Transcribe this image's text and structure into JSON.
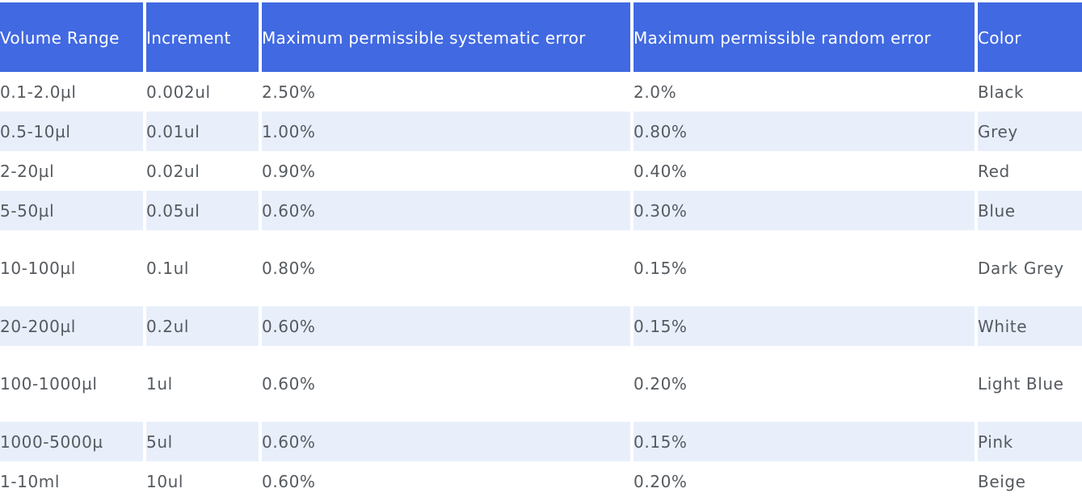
{
  "table": {
    "headers": [
      "Volume Range",
      "Increment",
      "Maximum permissible systematic error",
      "Maximum permissible random error",
      "Color"
    ],
    "rows": [
      [
        "0.1-2.0µl",
        "0.002ul",
        "2.50%",
        "2.0%",
        "Black"
      ],
      [
        "0.5-10µl",
        "0.01ul",
        "1.00%",
        "0.80%",
        "Grey"
      ],
      [
        "2-20µl",
        "0.02ul",
        "0.90%",
        "0.40%",
        "Red"
      ],
      [
        "5-50µl",
        "0.05ul",
        "0.60%",
        "0.30%",
        "Blue"
      ],
      [
        "10-100µl",
        "0.1ul",
        "0.80%",
        "0.15%",
        "Dark Grey"
      ],
      [
        "20-200µl",
        "0.2ul",
        "0.60%",
        "0.15%",
        "White"
      ],
      [
        "100-1000µl",
        "1ul",
        "0.60%",
        "0.20%",
        "Light Blue"
      ],
      [
        "1000-5000µ",
        "5ul",
        "0.60%",
        "0.15%",
        "Pink"
      ],
      [
        "1-10ml",
        "10ul",
        "0.60%",
        "0.20%",
        "Beige"
      ]
    ]
  },
  "colors": {
    "header_bg": "#4169e1",
    "header_text": "#ffffff",
    "stripe_bg": "#e8effb",
    "body_text": "#555a5f"
  }
}
